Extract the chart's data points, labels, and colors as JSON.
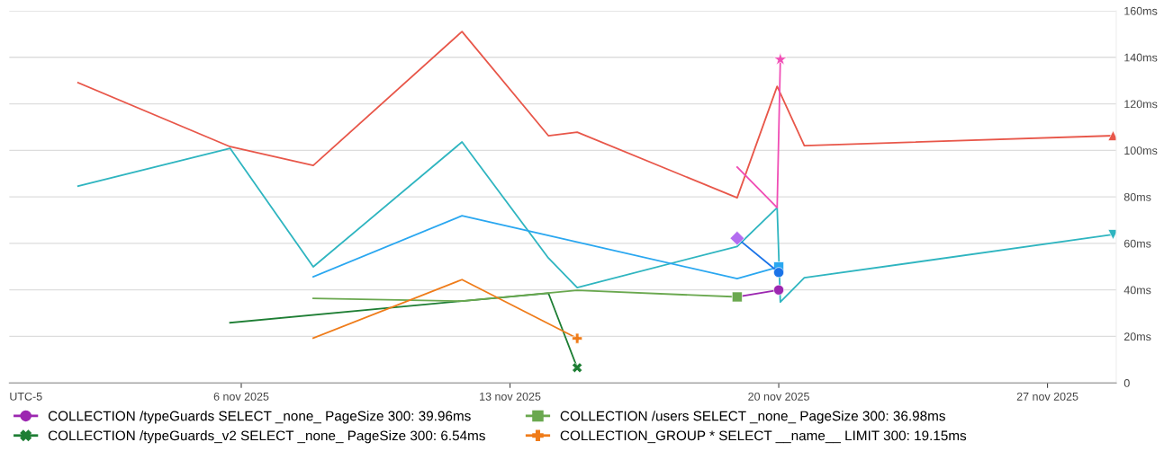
{
  "chart_data": {
    "type": "line",
    "x": [
      "2025-11-01T18:00",
      "2025-11-05T17:00",
      "2025-11-07T21:00",
      "2025-11-11T18:00",
      "2025-11-14T00:00",
      "2025-11-14T18:00",
      "2025-11-18T22:00",
      "2025-11-19T23:00",
      "2025-11-20T01:00",
      "2025-11-20T16:00",
      "2025-11-28T17:00"
    ],
    "series": [
      {
        "color": "#e8574a",
        "x": [
          "2025-11-01T18:00",
          "2025-11-05T17:00",
          "2025-11-07T21:00",
          "2025-11-11T18:00",
          "2025-11-14T00:00",
          "2025-11-14T18:00",
          "2025-11-18T22:00",
          "2025-11-19T23:00",
          "2025-11-20T16:00",
          "2025-11-28T17:00"
        ],
        "values": [
          129.1,
          101.6,
          93.5,
          151.1,
          106.3,
          107.8,
          79.6,
          127.5,
          102.0,
          106.3
        ]
      },
      {
        "type": "scatter",
        "color": "#e8574a",
        "marker": "triangle",
        "x": [
          "2025-11-28T17:00"
        ],
        "values": [
          106.3
        ]
      },
      {
        "color": "#2fb5c0",
        "values": [
          84.6,
          100.9,
          49.9,
          103.6,
          53.7,
          41.0,
          58.7,
          75.4,
          34.8,
          45.2,
          63.8
        ]
      },
      {
        "type": "scatter",
        "color": "#2fb5c0",
        "marker": "triangle_down",
        "x": [
          "2025-11-28T17:00"
        ],
        "values": [
          63.8
        ]
      },
      {
        "color": "#2aa7f0",
        "x": [
          "2025-11-07T21:00",
          "2025-11-11T18:00",
          "2025-11-18T22:00",
          "2025-11-20T00:00"
        ],
        "values": [
          45.6,
          71.9,
          44.8,
          49.9
        ]
      },
      {
        "type": "scatter",
        "color": "#2aa7f0",
        "marker": "square",
        "x": [
          "2025-11-20T00:00"
        ],
        "values": [
          49.9
        ]
      },
      {
        "color": "#1a73e8",
        "x": [
          "2025-11-18T22:00",
          "2025-11-20T00:00"
        ],
        "values": [
          62.2,
          47.5
        ]
      },
      {
        "type": "scatter",
        "color": "#1a73e8",
        "marker": "circle",
        "x": [
          "2025-11-20T00:00"
        ],
        "values": [
          47.5
        ]
      },
      {
        "type": "scatter",
        "color": "#b36cf0",
        "marker": "diamond",
        "x": [
          "2025-11-18T22:00"
        ],
        "values": [
          62.2
        ]
      },
      {
        "color": "#f04eb5",
        "x": [
          "2025-11-18T22:00",
          "2025-11-19T23:00",
          "2025-11-20T01:00"
        ],
        "values": [
          92.8,
          75.4,
          139.1
        ]
      },
      {
        "type": "scatter",
        "color": "#f04eb5",
        "marker": "star",
        "x": [
          "2025-11-20T01:00"
        ],
        "values": [
          139.1
        ]
      },
      {
        "name": "COLLECTION /typeGuards SELECT _none_ PageSize 300: 39.96ms",
        "color": "#9c27b0",
        "x": [
          "2025-11-18T22:00",
          "2025-11-20T00:00"
        ],
        "values": [
          36.98,
          39.96
        ]
      },
      {
        "type": "scatter",
        "color": "#9c27b0",
        "marker": "circle",
        "x": [
          "2025-11-20T00:00"
        ],
        "values": [
          39.96
        ]
      },
      {
        "name": "COLLECTION /typeGuards_v2 SELECT _none_ PageSize 300: 6.54ms",
        "color": "#1e7e34",
        "x": [
          "2025-11-05T17:00",
          "2025-11-11T18:00",
          "2025-11-14T00:00",
          "2025-11-14T18:00"
        ],
        "values": [
          25.9,
          35.2,
          38.6,
          6.54
        ]
      },
      {
        "type": "scatter",
        "color": "#1e7e34",
        "marker": "cross",
        "x": [
          "2025-11-14T18:00"
        ],
        "values": [
          6.54
        ]
      },
      {
        "name": "COLLECTION /users SELECT _none_ PageSize 300: 36.98ms",
        "color": "#6aa84f",
        "x": [
          "2025-11-07T21:00",
          "2025-11-11T18:00",
          "2025-11-14T18:00",
          "2025-11-18T22:00"
        ],
        "values": [
          36.3,
          35.2,
          39.8,
          36.98
        ]
      },
      {
        "type": "scatter",
        "color": "#6aa84f",
        "marker": "square",
        "x": [
          "2025-11-18T22:00"
        ],
        "values": [
          36.98
        ]
      },
      {
        "name": "COLLECTION_GROUP * SELECT __name__ LIMIT 300: 19.15ms",
        "color": "#ef7c1a",
        "x": [
          "2025-11-07T21:00",
          "2025-11-11T18:00",
          "2025-11-14T18:00"
        ],
        "values": [
          19.3,
          44.4,
          19.15
        ]
      },
      {
        "type": "scatter",
        "color": "#ef7c1a",
        "marker": "plus",
        "x": [
          "2025-11-14T18:00"
        ],
        "values": [
          19.15
        ]
      }
    ],
    "xlim": [
      "2025-10-30T23:00",
      "2025-11-28T19:00"
    ],
    "xticks": [
      {
        "value": "2025-11-06",
        "label": "6 nov 2025"
      },
      {
        "value": "2025-11-13",
        "label": "13 nov 2025"
      },
      {
        "value": "2025-11-20",
        "label": "20 nov 2025"
      },
      {
        "value": "2025-11-27",
        "label": "27 nov 2025"
      }
    ],
    "ylim": [
      0,
      160
    ],
    "yticks": [
      0,
      {
        "value": 20,
        "label": "20ms"
      },
      {
        "value": 40,
        "label": "40ms"
      },
      {
        "value": 60,
        "label": "60ms"
      },
      {
        "value": 80,
        "label": "80ms"
      },
      {
        "value": 100,
        "label": "100ms"
      },
      {
        "value": 120,
        "label": "120ms"
      },
      {
        "value": 140,
        "label": "140ms"
      },
      {
        "value": 160,
        "label": "160ms"
      }
    ],
    "grid": "y",
    "legend": "bottom",
    "annotations": [
      "UTC-5"
    ]
  }
}
